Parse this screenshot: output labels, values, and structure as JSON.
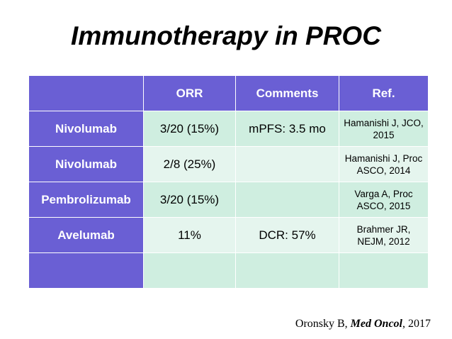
{
  "title": "Immunotherapy in PROC",
  "table": {
    "headers": [
      "",
      "ORR",
      "Comments",
      "Ref."
    ],
    "rows": [
      {
        "drug": "Nivolumab",
        "orr": "3/20 (15%)",
        "comments": "mPFS: 3.5 mo",
        "ref": "Hamanishi J, JCO, 2015"
      },
      {
        "drug": "Nivolumab",
        "orr": "2/8 (25%)",
        "comments": "",
        "ref": "Hamanishi J, Proc ASCO, 2014"
      },
      {
        "drug": "Pembrolizumab",
        "orr": "3/20 (15%)",
        "comments": "",
        "ref": "Varga A, Proc ASCO, 2015"
      },
      {
        "drug": "Avelumab",
        "orr": "11%",
        "comments": "DCR: 57%",
        "ref": "Brahmer JR, NEJM, 2012"
      },
      {
        "drug": "",
        "orr": "",
        "comments": "",
        "ref": ""
      }
    ]
  },
  "citation": {
    "authors": "Oronsky B,",
    "journal": "Med Oncol",
    "year": ", 2017"
  },
  "colors": {
    "header_bg": "#6a5fd4",
    "cell_dark": "#cfeee0",
    "cell_light": "#e5f5ee"
  }
}
